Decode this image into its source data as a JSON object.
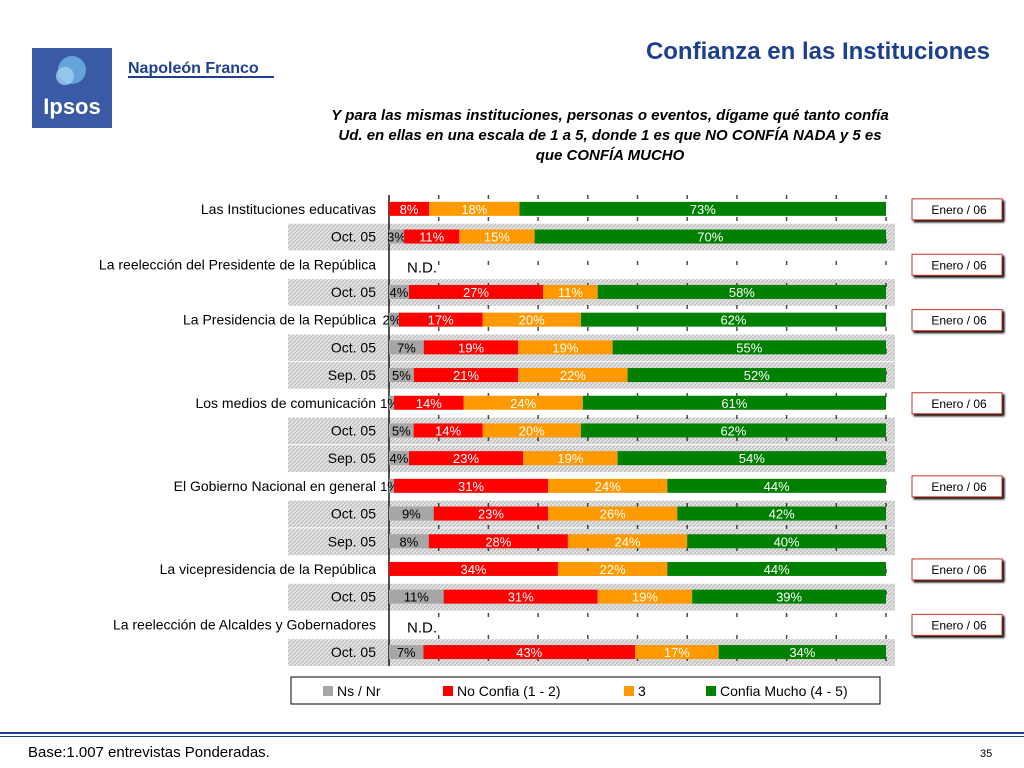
{
  "header": {
    "logo_text": "Ipsos",
    "brand": "Napoleón Franco",
    "title": "Confianza en las Instituciones",
    "subtitle": "Y para las mismas instituciones, personas o eventos, dígame qué tanto confía Ud. en ellas en una escala de 1 a 5, donde 1 es que NO CONFÍA NADA y 5 es que CONFÍA MUCHO"
  },
  "footer": {
    "base_text": "Base:1.007 entrevistas Ponderadas.",
    "page_number": "35"
  },
  "colors": {
    "ns_nr": "#a6a6a6",
    "no_confia": "#ff0000",
    "tres": "#ff9900",
    "confia_mucho": "#008000",
    "title_blue": "#1d3f8f"
  },
  "chart_data": {
    "type": "bar",
    "orientation": "horizontal-stacked-100",
    "series_names": [
      "Ns / Nr",
      "No Confia (1 - 2)",
      "3",
      "Confia Mucho (4 - 5)"
    ],
    "rows": [
      {
        "label": "Las Instituciones educativas",
        "shaded": false,
        "values": [
          0,
          8,
          18,
          73
        ],
        "labels": [
          "",
          "8%",
          "18%",
          "73%"
        ],
        "tag": "Enero / 06"
      },
      {
        "label": "Oct. 05",
        "shaded": true,
        "values": [
          3,
          11,
          15,
          70
        ],
        "labels": [
          "3%",
          "11%",
          "15%",
          "70%"
        ]
      },
      {
        "label": "La reelección del Presidente de la República",
        "shaded": false,
        "values": null,
        "labels": [],
        "na_text": "N.D.",
        "tag": "Enero / 06"
      },
      {
        "label": "Oct. 05",
        "shaded": true,
        "values": [
          4,
          27,
          11,
          58
        ],
        "labels": [
          "4%",
          "27%",
          "11%",
          "58%"
        ]
      },
      {
        "label": "La Presidencia de la República",
        "shaded": false,
        "values": [
          2,
          17,
          20,
          62
        ],
        "labels": [
          "2%",
          "17%",
          "20%",
          "62%"
        ],
        "tag": "Enero / 06"
      },
      {
        "label": "Oct. 05",
        "shaded": true,
        "values": [
          7,
          19,
          19,
          55
        ],
        "labels": [
          "7%",
          "19%",
          "19%",
          "55%"
        ]
      },
      {
        "label": "Sep. 05",
        "shaded": true,
        "values": [
          5,
          21,
          22,
          52
        ],
        "labels": [
          "5%",
          "21%",
          "22%",
          "52%"
        ]
      },
      {
        "label": "Los medios de comunicación",
        "shaded": false,
        "values": [
          1,
          14,
          24,
          61
        ],
        "labels": [
          "1%",
          "14%",
          "24%",
          "61%"
        ],
        "tag": "Enero / 06"
      },
      {
        "label": "Oct. 05",
        "shaded": true,
        "values": [
          5,
          14,
          20,
          62
        ],
        "labels": [
          "5%",
          "14%",
          "20%",
          "62%"
        ]
      },
      {
        "label": "Sep. 05",
        "shaded": true,
        "values": [
          4,
          23,
          19,
          54
        ],
        "labels": [
          "4%",
          "23%",
          "19%",
          "54%"
        ]
      },
      {
        "label": "El Gobierno Nacional en general",
        "shaded": false,
        "values": [
          1,
          31,
          24,
          44
        ],
        "labels": [
          "1%",
          "31%",
          "24%",
          "44%"
        ],
        "tag": "Enero / 06"
      },
      {
        "label": "Oct. 05",
        "shaded": true,
        "values": [
          9,
          23,
          26,
          42
        ],
        "labels": [
          "9%",
          "23%",
          "26%",
          "42%"
        ]
      },
      {
        "label": "Sep. 05",
        "shaded": true,
        "values": [
          8,
          28,
          24,
          40
        ],
        "labels": [
          "8%",
          "28%",
          "24%",
          "40%"
        ]
      },
      {
        "label": "La vicepresidencia de la República",
        "shaded": false,
        "values": [
          0,
          34,
          22,
          44
        ],
        "labels": [
          "",
          "34%",
          "22%",
          "44%"
        ],
        "tag": "Enero / 06"
      },
      {
        "label": "Oct. 05",
        "shaded": true,
        "values": [
          11,
          31,
          19,
          39
        ],
        "labels": [
          "11%",
          "31%",
          "19%",
          "39%"
        ]
      },
      {
        "label": "La reelección de Alcaldes y Gobernadores",
        "shaded": false,
        "values": null,
        "labels": [],
        "na_text": "N.D.",
        "tag": "Enero / 06"
      },
      {
        "label": "Oct. 05",
        "shaded": true,
        "values": [
          7,
          43,
          17,
          34
        ],
        "labels": [
          "7%",
          "43%",
          "17%",
          "34%"
        ]
      }
    ],
    "xlim": [
      0,
      100
    ],
    "grid": true,
    "legend_position": "bottom"
  }
}
